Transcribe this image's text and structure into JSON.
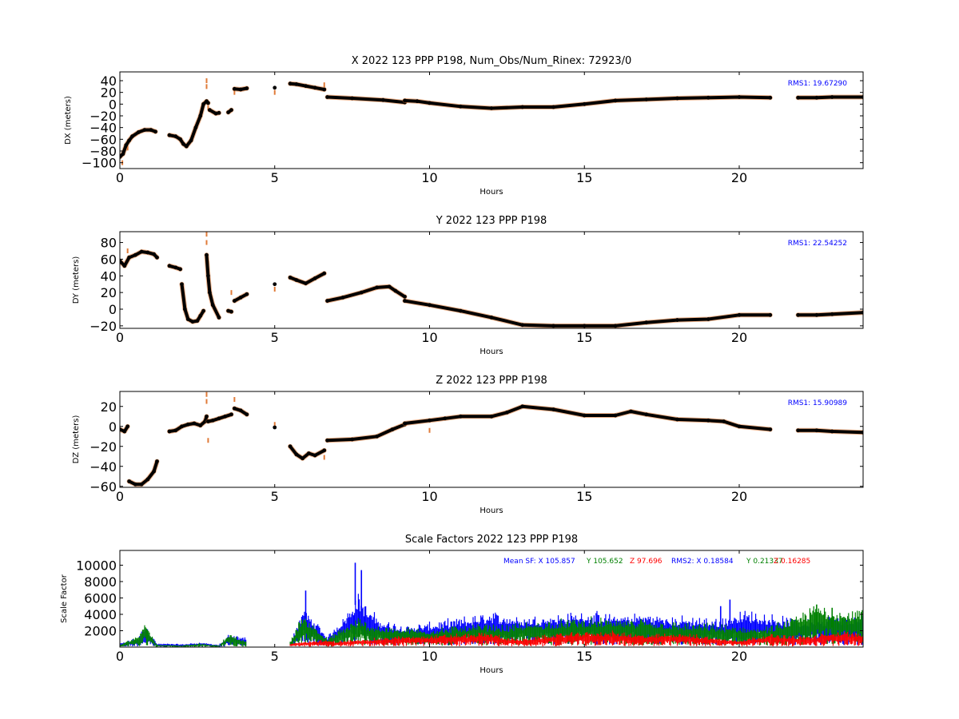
{
  "colors": {
    "track": "#000000",
    "outlier": "#e07b39",
    "rms_text": "#0000ff",
    "sf_x": "#0000ff",
    "sf_y": "#008000",
    "sf_z": "#ff0000"
  },
  "chart_data": [
    {
      "type": "scatter",
      "title": "X 2022 123 PPP  P198, Num_Obs/Num_Rinex: 72923/0",
      "xlabel": "Hours",
      "ylabel": "DX (meters)",
      "xlim": [
        0,
        24
      ],
      "ylim": [
        -110,
        55
      ],
      "xticks": [
        0,
        5,
        10,
        15,
        20
      ],
      "yticks": [
        -100,
        -80,
        -60,
        -40,
        -20,
        0,
        20,
        40
      ],
      "xtick_labels": [
        "0",
        "5",
        "10",
        "15",
        "20"
      ],
      "ytick_labels": [
        "−100",
        "−80",
        "−60",
        "−40",
        "−20",
        "0",
        "20",
        "40"
      ],
      "annotation": "RMS1: 19.67290",
      "series": [
        {
          "x": [
            0.0,
            0.1,
            0.2,
            0.3,
            0.4,
            0.6,
            0.8,
            1.0,
            1.15
          ],
          "y": [
            -90,
            -85,
            -70,
            -62,
            -55,
            -48,
            -44,
            -44,
            -47
          ]
        },
        {
          "x": [
            1.6,
            1.8,
            1.95,
            2.05,
            2.15,
            2.3,
            2.45,
            2.6,
            2.7,
            2.8,
            2.85
          ],
          "y": [
            -53,
            -55,
            -60,
            -68,
            -72,
            -62,
            -40,
            -20,
            0,
            5,
            2
          ]
        },
        {
          "x": [
            2.9,
            3.1,
            3.2
          ],
          "y": [
            -10,
            -16,
            -15
          ]
        },
        {
          "x": [
            3.5,
            3.6
          ],
          "y": [
            -14,
            -10
          ]
        },
        {
          "x": [
            3.7,
            3.9,
            4.1
          ],
          "y": [
            26,
            25,
            27
          ]
        },
        {
          "x": [
            5.0
          ],
          "y": [
            28
          ]
        },
        {
          "x": [
            5.5,
            5.7,
            6.0,
            6.3,
            6.6
          ],
          "y": [
            35,
            34,
            31,
            28,
            25
          ]
        },
        {
          "x": [
            6.7,
            7.5,
            8.5,
            9.2
          ],
          "y": [
            12,
            10,
            7,
            3
          ]
        },
        {
          "x": [
            9.2,
            9.6,
            10.0,
            11.0,
            12.0,
            13.0,
            14.0,
            15.0,
            16.0,
            17.0,
            18.0,
            19.0,
            20.0,
            21.0
          ],
          "y": [
            6,
            5,
            2,
            -4,
            -7,
            -5,
            -5,
            0,
            6,
            8,
            10,
            11,
            12,
            11
          ]
        },
        {
          "x": [
            21.9,
            22.5,
            23.0,
            24.0
          ],
          "y": [
            11,
            11,
            12,
            12
          ]
        }
      ],
      "outliers": [
        {
          "x": 0.08,
          "y": -100
        },
        {
          "x": 0.25,
          "y": -75
        },
        {
          "x": 2.8,
          "y": 40
        },
        {
          "x": 2.8,
          "y": 30
        },
        {
          "x": 2.85,
          "y": -6
        },
        {
          "x": 3.7,
          "y": 20
        },
        {
          "x": 5.0,
          "y": 20
        },
        {
          "x": 6.6,
          "y": 33
        }
      ]
    },
    {
      "type": "scatter",
      "title": "Y 2022 123 PPP  P198",
      "xlabel": "Hours",
      "ylabel": "DY (meters)",
      "xlim": [
        0,
        24
      ],
      "ylim": [
        -23,
        93
      ],
      "xticks": [
        0,
        5,
        10,
        15,
        20
      ],
      "yticks": [
        -20,
        0,
        20,
        40,
        60,
        80
      ],
      "xtick_labels": [
        "0",
        "5",
        "10",
        "15",
        "20"
      ],
      "ytick_labels": [
        "−20",
        "0",
        "20",
        "40",
        "60",
        "80"
      ],
      "annotation": "RMS1: 22.54252",
      "series": [
        {
          "x": [
            0.0,
            0.15,
            0.3,
            0.5,
            0.7,
            0.9,
            1.1,
            1.2
          ],
          "y": [
            58,
            52,
            62,
            65,
            69,
            68,
            66,
            62
          ]
        },
        {
          "x": [
            1.6,
            1.8,
            1.95
          ],
          "y": [
            52,
            50,
            48
          ]
        },
        {
          "x": [
            2.0,
            2.1,
            2.2,
            2.35,
            2.5,
            2.6,
            2.7
          ],
          "y": [
            30,
            0,
            -12,
            -15,
            -14,
            -8,
            -2
          ]
        },
        {
          "x": [
            2.8,
            2.85,
            2.9,
            3.0,
            3.2
          ],
          "y": [
            65,
            40,
            20,
            5,
            -10
          ]
        },
        {
          "x": [
            3.5,
            3.6
          ],
          "y": [
            -2,
            -3
          ]
        },
        {
          "x": [
            3.7,
            3.9,
            4.1
          ],
          "y": [
            10,
            14,
            18
          ]
        },
        {
          "x": [
            5.0
          ],
          "y": [
            30
          ]
        },
        {
          "x": [
            5.5,
            5.7,
            6.0,
            6.3,
            6.6
          ],
          "y": [
            38,
            35,
            31,
            37,
            43
          ]
        },
        {
          "x": [
            6.7,
            7.2,
            7.8,
            8.3,
            8.7,
            8.9,
            9.2
          ],
          "y": [
            10,
            14,
            20,
            26,
            27,
            22,
            15
          ]
        },
        {
          "x": [
            9.2,
            10.0,
            11.0,
            12.0,
            13.0,
            14.0,
            15.0,
            16.0,
            17.0,
            18.0,
            19.0,
            20.0,
            21.0
          ],
          "y": [
            10,
            5,
            -2,
            -10,
            -19,
            -20,
            -20,
            -20,
            -16,
            -13,
            -12,
            -7,
            -7
          ]
        },
        {
          "x": [
            21.9,
            22.5,
            23.0,
            24.0
          ],
          "y": [
            -7,
            -7,
            -6,
            -4
          ]
        }
      ],
      "outliers": [
        {
          "x": 2.8,
          "y": 90
        },
        {
          "x": 2.8,
          "y": 80
        },
        {
          "x": 2.85,
          "y": 55
        },
        {
          "x": 3.6,
          "y": 20
        },
        {
          "x": 5.0,
          "y": 24
        },
        {
          "x": 0.25,
          "y": 70
        }
      ]
    },
    {
      "type": "scatter",
      "title": "Z 2022 123 PPP  P198",
      "xlabel": "Hours",
      "ylabel": "DZ (meters)",
      "xlim": [
        0,
        24
      ],
      "ylim": [
        -61,
        35
      ],
      "xticks": [
        0,
        5,
        10,
        15,
        20
      ],
      "yticks": [
        -60,
        -40,
        -20,
        0,
        20
      ],
      "xtick_labels": [
        "0",
        "5",
        "10",
        "15",
        "20"
      ],
      "ytick_labels": [
        "−60",
        "−40",
        "−20",
        "0",
        "20"
      ],
      "annotation": "RMS1: 15.90989",
      "series": [
        {
          "x": [
            0.0,
            0.15,
            0.25
          ],
          "y": [
            -3,
            -5,
            0
          ]
        },
        {
          "x": [
            0.3,
            0.5,
            0.7,
            0.9,
            1.1,
            1.2
          ],
          "y": [
            -55,
            -58,
            -58,
            -53,
            -45,
            -35
          ]
        },
        {
          "x": [
            1.6,
            1.8,
            2.0,
            2.2,
            2.4,
            2.6,
            2.75,
            2.8
          ],
          "y": [
            -5,
            -4,
            0,
            2,
            3,
            1,
            5,
            10
          ]
        },
        {
          "x": [
            2.85,
            3.0,
            3.2,
            3.4,
            3.6
          ],
          "y": [
            5,
            6,
            8,
            10,
            12
          ]
        },
        {
          "x": [
            3.7,
            3.9,
            4.1
          ],
          "y": [
            18,
            16,
            12
          ]
        },
        {
          "x": [
            5.0
          ],
          "y": [
            -1
          ]
        },
        {
          "x": [
            5.5,
            5.7,
            5.9,
            6.1,
            6.3,
            6.6
          ],
          "y": [
            -20,
            -28,
            -32,
            -27,
            -29,
            -24
          ]
        },
        {
          "x": [
            6.7,
            7.5,
            8.3,
            8.8,
            9.2
          ],
          "y": [
            -14,
            -13,
            -10,
            -3,
            2
          ]
        },
        {
          "x": [
            9.2,
            10.0,
            10.5,
            11.0,
            12.0,
            12.5,
            13.0,
            14.0,
            15.0,
            16.0,
            16.5,
            17.0,
            18.0,
            19.0,
            19.5,
            20.0,
            21.0
          ],
          "y": [
            3,
            6,
            8,
            10,
            10,
            14,
            20,
            17,
            11,
            11,
            15,
            12,
            7,
            6,
            5,
            0,
            -3
          ]
        },
        {
          "x": [
            21.9,
            22.5,
            23.0,
            24.0
          ],
          "y": [
            -4,
            -4,
            -5,
            -6
          ]
        }
      ],
      "outliers": [
        {
          "x": 2.8,
          "y": 32
        },
        {
          "x": 2.8,
          "y": 25
        },
        {
          "x": 2.85,
          "y": -14
        },
        {
          "x": 3.7,
          "y": 27
        },
        {
          "x": 5.0,
          "y": 2
        },
        {
          "x": 6.6,
          "y": -31
        },
        {
          "x": 10.0,
          "y": -4
        }
      ]
    },
    {
      "type": "scatter",
      "title": "Scale Factors 2022 123 PPP  P198",
      "xlabel": "Hours",
      "ylabel": "Scale Factor",
      "xlim": [
        0,
        24
      ],
      "ylim": [
        0,
        11800
      ],
      "xticks": [
        0,
        5,
        10,
        15,
        20
      ],
      "yticks": [
        2000,
        4000,
        6000,
        8000,
        10000
      ],
      "xtick_labels": [
        "0",
        "5",
        "10",
        "15",
        "20"
      ],
      "ytick_labels": [
        "2000",
        "4000",
        "6000",
        "8000",
        "10000"
      ],
      "legend_text": [
        {
          "text": "Mean SF: X 105.857",
          "color": "#0000ff"
        },
        {
          "text": "Y 105.652",
          "color": "#008000"
        },
        {
          "text": "Z  97.696",
          "color": "#ff0000"
        },
        {
          "text": "RMS2: X  0.18584",
          "color": "#0000ff"
        },
        {
          "text": "Y  0.21337",
          "color": "#008000"
        },
        {
          "text": "Z  0.16285",
          "color": "#ff0000"
        }
      ],
      "series": [
        {
          "name": "X",
          "x": [
            0.0,
            0.6,
            0.8,
            1.2,
            1.6,
            2.0,
            2.6,
            3.2,
            3.5,
            4.1,
            5.5,
            5.9,
            6.3,
            6.7,
            7.3,
            7.7,
            8.0,
            8.5,
            9.2,
            10.0,
            11.0,
            12.0,
            12.5,
            13.0,
            14.0,
            15.0,
            16.0,
            17.0,
            18.0,
            19.0,
            19.5,
            20.0,
            21.0,
            22.0,
            22.5,
            23.0,
            24.0
          ],
          "y": [
            300,
            800,
            2000,
            300,
            300,
            250,
            400,
            200,
            1000,
            800,
            300,
            3200,
            2200,
            900,
            2800,
            4500,
            3200,
            2200,
            1800,
            2000,
            2400,
            2900,
            2700,
            2500,
            2700,
            2900,
            2700,
            2800,
            2500,
            2400,
            2400,
            3000,
            2700,
            2200,
            2600,
            2500,
            2600
          ]
        },
        {
          "name": "Y",
          "x": [
            0.0,
            0.6,
            0.8,
            1.2,
            1.6,
            2.0,
            2.6,
            3.2,
            3.5,
            4.1,
            5.5,
            5.9,
            6.3,
            6.7,
            7.3,
            7.7,
            8.0,
            8.5,
            9.2,
            10.0,
            11.0,
            12.0,
            12.5,
            13.0,
            14.0,
            15.0,
            16.0,
            17.0,
            18.0,
            19.0,
            19.5,
            20.0,
            21.0,
            22.0,
            22.5,
            23.0,
            24.0
          ],
          "y": [
            200,
            1000,
            2200,
            200,
            200,
            150,
            300,
            150,
            1100,
            500,
            500,
            2800,
            1800,
            700,
            1800,
            2400,
            2000,
            1700,
            1600,
            1500,
            1800,
            1900,
            1800,
            2000,
            2200,
            2400,
            2300,
            2300,
            2000,
            1900,
            1800,
            1700,
            1700,
            2800,
            3600,
            3200,
            3000
          ]
        },
        {
          "name": "Z",
          "x": [
            5.5,
            6.0,
            6.5,
            7.0,
            8.0,
            9.0,
            10.0,
            11.0,
            12.0,
            12.5,
            13.0,
            14.0,
            15.0,
            16.0,
            17.0,
            18.0,
            19.0,
            19.5,
            20.0,
            21.0,
            22.0,
            22.5,
            23.0,
            24.0
          ],
          "y": [
            300,
            500,
            600,
            500,
            700,
            900,
            1000,
            1100,
            1200,
            800,
            700,
            1100,
            1300,
            1300,
            1000,
            1200,
            900,
            700,
            600,
            1100,
            900,
            1000,
            1300,
            1200
          ]
        }
      ]
    }
  ]
}
